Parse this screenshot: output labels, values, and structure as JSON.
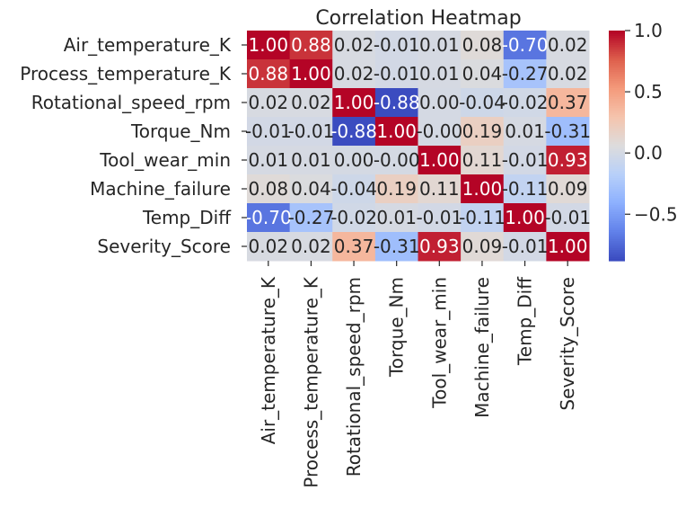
{
  "chart_data": {
    "type": "heatmap",
    "title": "Correlation Heatmap",
    "xlabel": "",
    "ylabel": "",
    "rows": [
      "Air_temperature_K",
      "Process_temperature_K",
      "Rotational_speed_rpm",
      "Torque_Nm",
      "Tool_wear_min",
      "Machine_failure",
      "Temp_Diff",
      "Severity_Score"
    ],
    "columns": [
      "Air_temperature_K",
      "Process_temperature_K",
      "Rotational_speed_rpm",
      "Torque_Nm",
      "Tool_wear_min",
      "Machine_failure",
      "Temp_Diff",
      "Severity_Score"
    ],
    "values": [
      [
        1.0,
        0.88,
        0.02,
        -0.01,
        0.01,
        0.08,
        -0.7,
        0.02
      ],
      [
        0.88,
        1.0,
        0.02,
        -0.01,
        0.01,
        0.04,
        -0.27,
        0.02
      ],
      [
        0.02,
        0.02,
        1.0,
        -0.88,
        0.0,
        -0.04,
        -0.02,
        0.37
      ],
      [
        -0.01,
        -0.01,
        -0.88,
        1.0,
        -0.0,
        0.19,
        0.01,
        -0.31
      ],
      [
        0.01,
        0.01,
        0.0,
        -0.0,
        1.0,
        0.11,
        -0.01,
        0.93
      ],
      [
        0.08,
        0.04,
        -0.04,
        0.19,
        0.11,
        1.0,
        -0.11,
        0.09
      ],
      [
        -0.7,
        -0.27,
        -0.02,
        0.01,
        -0.01,
        -0.11,
        1.0,
        -0.01
      ],
      [
        0.02,
        0.02,
        0.37,
        -0.31,
        0.93,
        0.09,
        -0.01,
        1.0
      ]
    ],
    "cell_labels": [
      [
        "1.00",
        "0.88",
        "0.02",
        "-0.01",
        "0.01",
        "0.08",
        "-0.70",
        "0.02"
      ],
      [
        "0.88",
        "1.00",
        "0.02",
        "-0.01",
        "0.01",
        "0.04",
        "-0.27",
        "0.02"
      ],
      [
        "0.02",
        "0.02",
        "1.00",
        "-0.88",
        "0.00",
        "-0.04",
        "-0.02",
        "0.37"
      ],
      [
        "-0.01",
        "-0.01",
        "-0.88",
        "1.00",
        "-0.00",
        "0.19",
        "0.01",
        "-0.31"
      ],
      [
        "0.01",
        "0.01",
        "0.00",
        "-0.00",
        "1.00",
        "0.11",
        "-0.01",
        "0.93"
      ],
      [
        "0.08",
        "0.04",
        "-0.04",
        "0.19",
        "0.11",
        "1.00",
        "-0.11",
        "0.09"
      ],
      [
        "-0.70",
        "-0.27",
        "-0.02",
        "0.01",
        "-0.01",
        "-0.11",
        "1.00",
        "-0.01"
      ],
      [
        "0.02",
        "0.02",
        "0.37",
        "-0.31",
        "0.93",
        "0.09",
        "-0.01",
        "1.00"
      ]
    ],
    "colormap": "coolwarm",
    "vmin": -0.88,
    "vmax": 1.0,
    "colorbar": {
      "ticks": [
        1.0,
        0.5,
        0.0,
        -0.5
      ],
      "tick_labels": [
        "1.0",
        "0.5",
        "0.0",
        "−0.5"
      ]
    },
    "colors": {
      "low": "#3b4cc0",
      "mid": "#dddcdc",
      "high": "#b40426"
    }
  }
}
